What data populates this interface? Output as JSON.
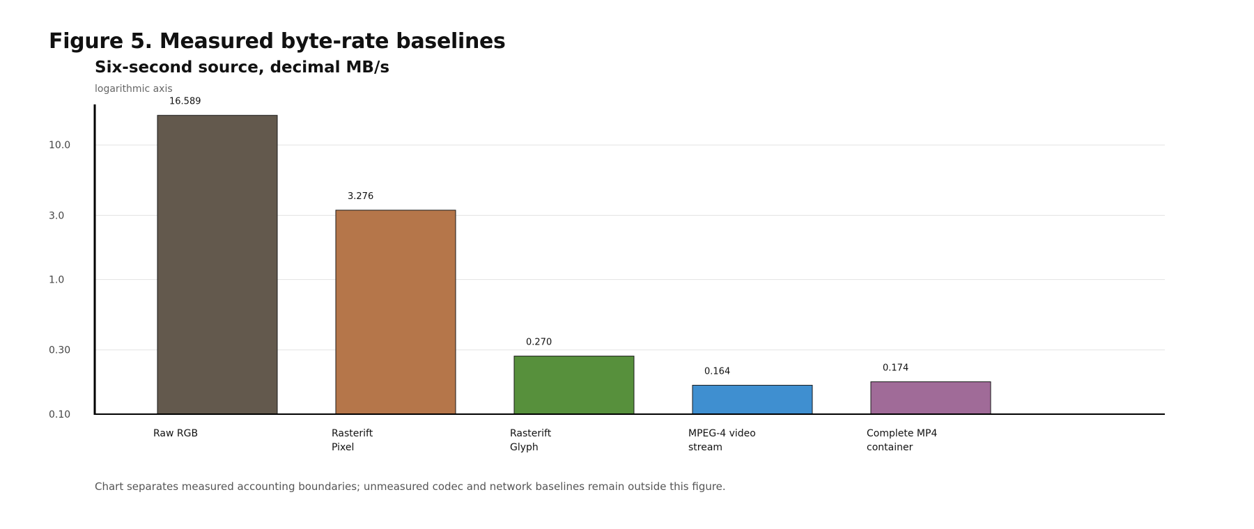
{
  "figure": {
    "title": "Figure 5. Measured byte-rate baselines",
    "subtitle": "Six-second source, decimal MB/s",
    "axis_note": "logarithmic axis",
    "footnote": "Chart separates measured accounting boundaries; unmeasured codec and network baselines remain outside this figure."
  },
  "chart_data": {
    "type": "bar",
    "title": "Figure 5. Measured byte-rate baselines",
    "subtitle": "Six-second source, decimal MB/s",
    "xlabel": "",
    "ylabel": "",
    "y_scale": "log",
    "ylim": [
      0.1,
      20
    ],
    "y_ticks": [
      0.1,
      0.3,
      1.0,
      3.0,
      10.0
    ],
    "y_tick_labels": [
      "0.10",
      "0.30",
      "1.0",
      "3.0",
      "10.0"
    ],
    "grid": true,
    "categories": [
      [
        "Raw RGB"
      ],
      [
        "Rasterift",
        "Pixel"
      ],
      [
        "Rasterift",
        "Glyph"
      ],
      [
        "MPEG-4 video",
        "stream"
      ],
      [
        "Complete MP4",
        "container"
      ]
    ],
    "values": [
      16.589,
      3.276,
      0.27,
      0.164,
      0.174
    ],
    "value_labels": [
      "16.589",
      "3.276",
      "0.270",
      "0.164",
      "0.174"
    ],
    "colors": [
      "#63594d",
      "#b5764a",
      "#57903c",
      "#3f8fd0",
      "#a06b98"
    ]
  }
}
